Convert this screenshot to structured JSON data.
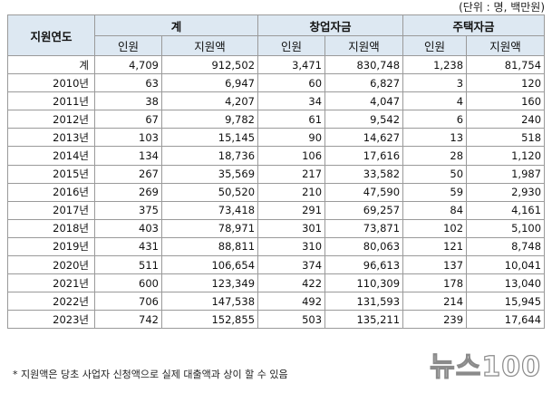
{
  "unit_note": "(단위 : 명, 백만원)",
  "header": {
    "year_label": "지원연도",
    "groups": [
      "계",
      "창업자금",
      "주택자금"
    ],
    "sub": [
      "인원",
      "지원액",
      "인원",
      "지원액",
      "인원",
      "지원액"
    ]
  },
  "rows": [
    [
      "계",
      "4,709",
      "912,502",
      "3,471",
      "830,748",
      "1,238",
      "81,754"
    ],
    [
      "2010년",
      "63",
      "6,947",
      "60",
      "6,827",
      "3",
      "120"
    ],
    [
      "2011년",
      "38",
      "4,207",
      "34",
      "4,047",
      "4",
      "160"
    ],
    [
      "2012년",
      "67",
      "9,782",
      "61",
      "9,542",
      "6",
      "240"
    ],
    [
      "2013년",
      "103",
      "15,145",
      "90",
      "14,627",
      "13",
      "518"
    ],
    [
      "2014년",
      "134",
      "18,736",
      "106",
      "17,616",
      "28",
      "1,120"
    ],
    [
      "2015년",
      "267",
      "35,569",
      "217",
      "33,582",
      "50",
      "1,987"
    ],
    [
      "2016년",
      "269",
      "50,520",
      "210",
      "47,590",
      "59",
      "2,930"
    ],
    [
      "2017년",
      "375",
      "73,418",
      "291",
      "69,257",
      "84",
      "4,161"
    ],
    [
      "2018년",
      "403",
      "78,971",
      "301",
      "73,871",
      "102",
      "5,100"
    ],
    [
      "2019년",
      "431",
      "88,811",
      "310",
      "80,063",
      "121",
      "8,748"
    ],
    [
      "2020년",
      "511",
      "106,654",
      "374",
      "96,613",
      "137",
      "10,041"
    ],
    [
      "2021년",
      "600",
      "123,349",
      "422",
      "110,309",
      "178",
      "13,040"
    ],
    [
      "2022년",
      "706",
      "147,538",
      "492",
      "131,593",
      "214",
      "15,945"
    ],
    [
      "2023년",
      "742",
      "152,855",
      "503",
      "135,211",
      "239",
      "17,644"
    ]
  ],
  "footnote": "* 지원액은 당초 사업자 신청액으로 실제 대출액과 상이 할 수 있음",
  "watermark": "뉴스100"
}
